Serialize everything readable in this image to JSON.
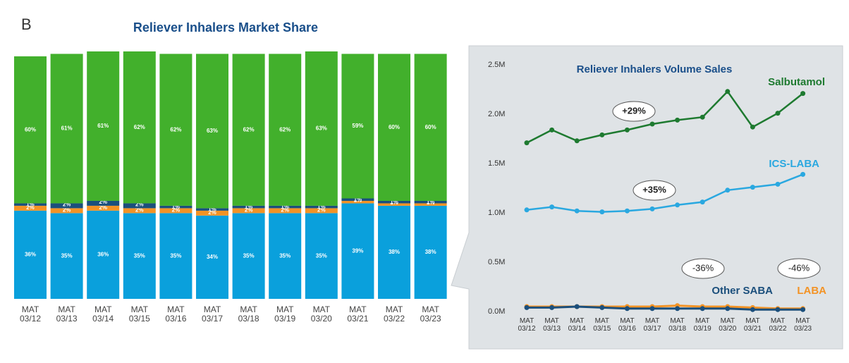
{
  "panel_label": "B",
  "chart_data": [
    {
      "type": "stacked_bar",
      "title": "Reliever Inhalers Market Share",
      "categories": [
        "MAT 03/12",
        "MAT 03/13",
        "MAT 03/14",
        "MAT 03/15",
        "MAT 03/16",
        "MAT 03/17",
        "MAT 03/18",
        "MAT 03/19",
        "MAT 03/20",
        "MAT 03/21",
        "MAT 03/22",
        "MAT 03/23"
      ],
      "ylim": [
        0,
        103
      ],
      "series": [
        {
          "color": "#0aa0dc",
          "values": [
            36,
            35,
            36,
            35,
            35,
            34,
            35,
            35,
            35,
            39,
            38,
            38
          ],
          "value_labels": [
            "36%",
            "35%",
            "36%",
            "35%",
            "35%",
            "34%",
            "35%",
            "35%",
            "35%",
            "39%",
            "38%",
            "38%"
          ]
        },
        {
          "color": "#f39325",
          "values": [
            2,
            2,
            2,
            2,
            2,
            2,
            2,
            2,
            2,
            1,
            1,
            1
          ],
          "value_labels": [
            "2%",
            "2%",
            "2%",
            "2%",
            "2%",
            "2%",
            "2%",
            "2%",
            "2%",
            "1%",
            "1%",
            "1%"
          ]
        },
        {
          "color": "#1b4f7c",
          "values": [
            1,
            2,
            2,
            2,
            1,
            1,
            1,
            1,
            1,
            1,
            1,
            1
          ],
          "value_labels": [
            "1%",
            "2%",
            "2%",
            "2%",
            "1%",
            "1%",
            "1%",
            "1%",
            "1%",
            "1%",
            "1%",
            "1%"
          ]
        },
        {
          "color": "#42b02c",
          "values": [
            60,
            61,
            61,
            62,
            62,
            63,
            62,
            62,
            63,
            59,
            60,
            60
          ],
          "value_labels": [
            "60%",
            "61%",
            "61%",
            "62%",
            "62%",
            "63%",
            "62%",
            "62%",
            "63%",
            "59%",
            "60%",
            "60%"
          ]
        }
      ]
    },
    {
      "type": "line",
      "title": "Reliever Inhalers Volume Sales",
      "categories": [
        "MAT 03/12",
        "MAT 03/13",
        "MAT 03/14",
        "MAT 03/15",
        "MAT 03/16",
        "MAT 03/17",
        "MAT 03/18",
        "MAT 03/19",
        "MAT 03/20",
        "MAT 03/21",
        "MAT 03/22",
        "MAT 03/23"
      ],
      "ylim": [
        0,
        2.5
      ],
      "yticks": [
        {
          "value": 0,
          "label": "0.0M"
        },
        {
          "value": 0.5,
          "label": "0.5M"
        },
        {
          "value": 1,
          "label": "1.0M"
        },
        {
          "value": 1.5,
          "label": "1.5M"
        },
        {
          "value": 2,
          "label": "2.0M"
        },
        {
          "value": 2.5,
          "label": "2.5M"
        }
      ],
      "series": [
        {
          "name": "Salbutamol",
          "color": "#1e7a30",
          "values": [
            1.71,
            1.84,
            1.73,
            1.79,
            1.84,
            1.9,
            1.94,
            1.97,
            2.23,
            1.87,
            2.01,
            2.21
          ]
        },
        {
          "name": "ICS-LABA",
          "color": "#2aa8e0",
          "values": [
            1.03,
            1.06,
            1.02,
            1.01,
            1.02,
            1.04,
            1.08,
            1.11,
            1.23,
            1.26,
            1.29,
            1.39
          ]
        },
        {
          "name": "Other SABA",
          "color": "#1b4f7c",
          "values": [
            0.04,
            0.04,
            0.05,
            0.04,
            0.03,
            0.03,
            0.03,
            0.03,
            0.03,
            0.02,
            0.02,
            0.02
          ]
        },
        {
          "name": "LABA",
          "color": "#f39325",
          "values": [
            0.05,
            0.05,
            0.05,
            0.05,
            0.05,
            0.05,
            0.06,
            0.05,
            0.05,
            0.04,
            0.03,
            0.03
          ]
        }
      ],
      "annotations": [
        "+29%",
        "+35%",
        "-36%",
        "-46%"
      ]
    }
  ]
}
